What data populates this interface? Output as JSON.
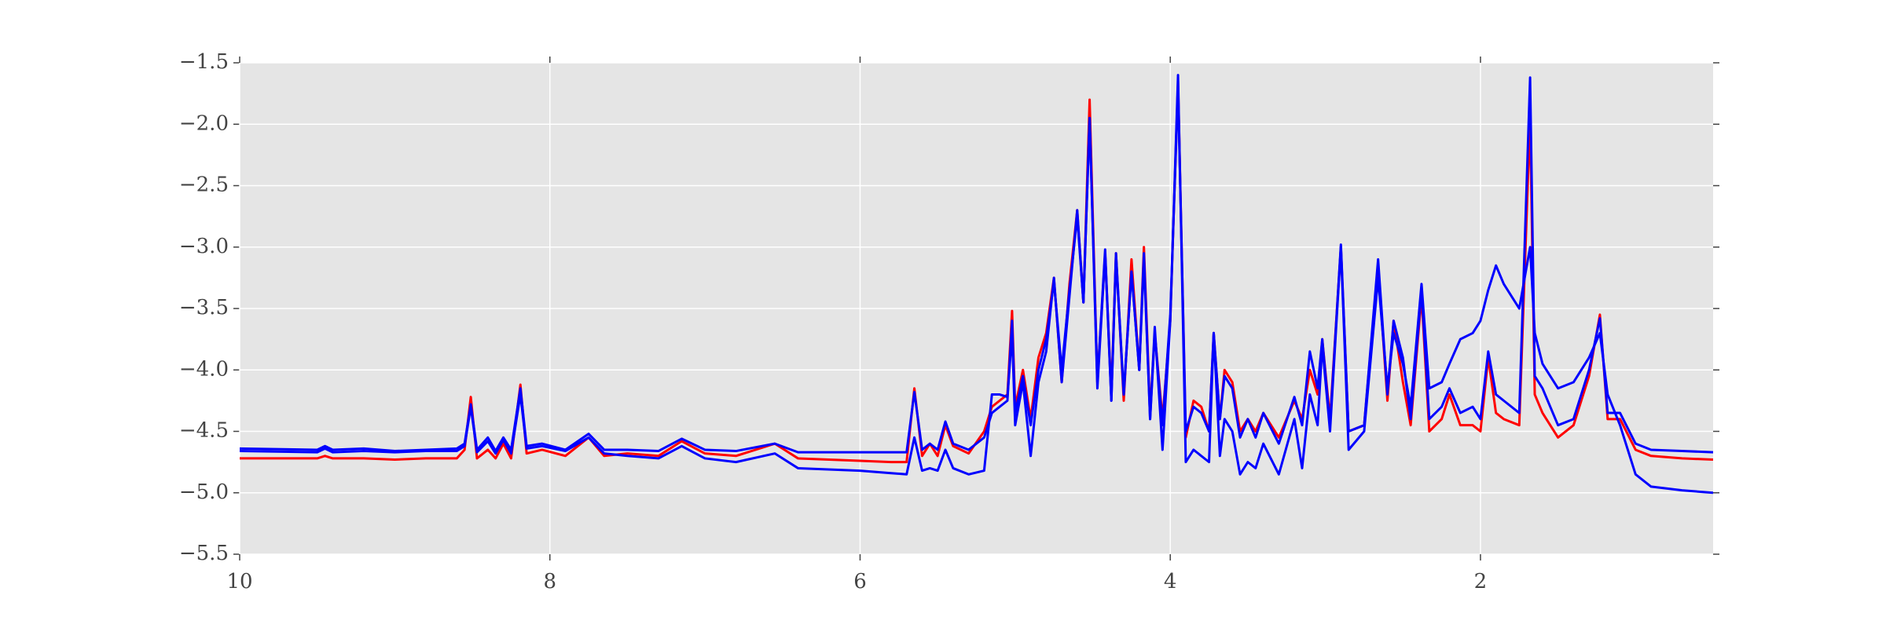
{
  "chart_data": {
    "type": "line",
    "x": [
      10,
      9.5,
      9.45,
      9.4,
      9.2,
      9.0,
      8.8,
      8.6,
      8.55,
      8.51,
      8.47,
      8.4,
      8.35,
      8.3,
      8.25,
      8.19,
      8.15,
      8.05,
      7.9,
      7.75,
      7.65,
      7.5,
      7.3,
      7.15,
      7.0,
      6.8,
      6.55,
      6.4,
      6.0,
      5.8,
      5.7,
      5.65,
      5.6,
      5.55,
      5.5,
      5.45,
      5.4,
      5.3,
      5.2,
      5.15,
      5.1,
      5.05,
      5.02,
      5.0,
      4.95,
      4.9,
      4.85,
      4.8,
      4.75,
      4.7,
      4.65,
      4.6,
      4.56,
      4.52,
      4.47,
      4.42,
      4.38,
      4.35,
      4.3,
      4.25,
      4.2,
      4.17,
      4.13,
      4.1,
      4.05,
      4.0,
      3.95,
      3.9,
      3.85,
      3.8,
      3.75,
      3.72,
      3.68,
      3.65,
      3.6,
      3.55,
      3.5,
      3.45,
      3.4,
      3.3,
      3.2,
      3.15,
      3.1,
      3.05,
      3.02,
      2.97,
      2.9,
      2.85,
      2.75,
      2.66,
      2.6,
      2.56,
      2.5,
      2.45,
      2.38,
      2.33,
      2.25,
      2.2,
      2.13,
      2.05,
      2.0,
      1.95,
      1.9,
      1.85,
      1.75,
      1.68,
      1.65,
      1.6,
      1.5,
      1.4,
      1.3,
      1.23,
      1.18,
      1.1,
      1.0,
      0.9,
      0.7,
      0.5
    ],
    "series": [
      {
        "color": "#ff0000",
        "values": [
          -4.72,
          -4.72,
          -4.7,
          -4.72,
          -4.72,
          -4.73,
          -4.72,
          -4.72,
          -4.65,
          -4.22,
          -4.72,
          -4.65,
          -4.72,
          -4.6,
          -4.72,
          -4.12,
          -4.68,
          -4.65,
          -4.7,
          -4.55,
          -4.7,
          -4.68,
          -4.7,
          -4.58,
          -4.68,
          -4.7,
          -4.6,
          -4.72,
          -4.74,
          -4.75,
          -4.75,
          -4.15,
          -4.7,
          -4.6,
          -4.7,
          -4.45,
          -4.62,
          -4.68,
          -4.5,
          -4.3,
          -4.25,
          -4.2,
          -3.52,
          -4.3,
          -4.0,
          -4.4,
          -3.9,
          -3.7,
          -3.25,
          -4.1,
          -3.3,
          -2.7,
          -3.45,
          -1.8,
          -4.1,
          -3.05,
          -4.2,
          -3.05,
          -4.25,
          -3.1,
          -4.0,
          -3.0,
          -4.35,
          -3.7,
          -4.4,
          -3.6,
          -1.65,
          -4.55,
          -4.25,
          -4.3,
          -4.5,
          -3.7,
          -4.4,
          -4.0,
          -4.1,
          -4.5,
          -4.4,
          -4.5,
          -4.35,
          -4.55,
          -4.25,
          -4.4,
          -4.0,
          -4.2,
          -3.75,
          -4.4,
          -3.0,
          -4.5,
          -4.45,
          -3.15,
          -4.25,
          -3.6,
          -4.1,
          -4.45,
          -3.4,
          -4.5,
          -4.4,
          -4.2,
          -4.45,
          -4.45,
          -4.5,
          -3.9,
          -4.35,
          -4.4,
          -4.45,
          -1.95,
          -4.2,
          -4.35,
          -4.55,
          -4.45,
          -4.05,
          -3.55,
          -4.4,
          -4.4,
          -4.65,
          -4.7,
          -4.72,
          -4.73
        ]
      },
      {
        "color": "#0000ff",
        "values": [
          -4.64,
          -4.65,
          -4.62,
          -4.65,
          -4.64,
          -4.66,
          -4.65,
          -4.64,
          -4.6,
          -4.28,
          -4.65,
          -4.55,
          -4.66,
          -4.55,
          -4.65,
          -4.15,
          -4.62,
          -4.6,
          -4.65,
          -4.52,
          -4.65,
          -4.65,
          -4.66,
          -4.56,
          -4.65,
          -4.66,
          -4.6,
          -4.67,
          -4.67,
          -4.67,
          -4.67,
          -4.18,
          -4.65,
          -4.6,
          -4.65,
          -4.42,
          -4.6,
          -4.65,
          -4.55,
          -4.35,
          -4.3,
          -4.25,
          -3.6,
          -4.35,
          -4.05,
          -4.45,
          -4.0,
          -3.75,
          -3.28,
          -4.0,
          -3.35,
          -2.75,
          -3.45,
          -1.95,
          -4.15,
          -3.05,
          -4.25,
          -3.08,
          -4.2,
          -3.2,
          -4.0,
          -3.05,
          -4.4,
          -3.7,
          -4.45,
          -3.55,
          -1.7,
          -4.5,
          -4.3,
          -4.35,
          -4.5,
          -3.7,
          -4.4,
          -4.05,
          -4.15,
          -4.55,
          -4.4,
          -4.55,
          -4.35,
          -4.6,
          -4.22,
          -4.45,
          -3.85,
          -4.15,
          -3.75,
          -4.45,
          -2.98,
          -4.5,
          -4.45,
          -3.1,
          -4.2,
          -3.6,
          -3.9,
          -4.4,
          -3.35,
          -4.4,
          -4.3,
          -4.15,
          -4.35,
          -4.3,
          -4.4,
          -3.85,
          -4.2,
          -4.25,
          -4.35,
          -1.62,
          -4.05,
          -4.15,
          -4.45,
          -4.4,
          -4.0,
          -3.58,
          -4.35,
          -4.35,
          -4.6,
          -4.65,
          -4.66,
          -4.67
        ]
      },
      {
        "color": "#0000ff",
        "values": [
          -4.66,
          -4.67,
          -4.64,
          -4.67,
          -4.66,
          -4.67,
          -4.66,
          -4.66,
          -4.62,
          -4.3,
          -4.67,
          -4.58,
          -4.68,
          -4.57,
          -4.68,
          -4.2,
          -4.64,
          -4.62,
          -4.66,
          -4.55,
          -4.68,
          -4.7,
          -4.72,
          -4.62,
          -4.72,
          -4.75,
          -4.68,
          -4.8,
          -4.82,
          -4.84,
          -4.85,
          -4.55,
          -4.82,
          -4.8,
          -4.82,
          -4.65,
          -4.8,
          -4.85,
          -4.82,
          -4.2,
          -4.2,
          -4.22,
          -3.7,
          -4.45,
          -4.1,
          -4.7,
          -4.1,
          -3.85,
          -3.25,
          -4.1,
          -3.4,
          -2.7,
          -3.45,
          -1.95,
          -4.1,
          -3.02,
          -4.25,
          -3.05,
          -4.2,
          -3.2,
          -4.0,
          -3.1,
          -4.4,
          -3.65,
          -4.65,
          -3.6,
          -1.6,
          -4.75,
          -4.65,
          -4.7,
          -4.75,
          -3.7,
          -4.7,
          -4.4,
          -4.5,
          -4.85,
          -4.75,
          -4.8,
          -4.6,
          -4.85,
          -4.4,
          -4.8,
          -4.2,
          -4.45,
          -3.8,
          -4.5,
          -3.0,
          -4.65,
          -4.5,
          -3.25,
          -4.15,
          -3.7,
          -3.95,
          -4.3,
          -3.3,
          -4.15,
          -4.1,
          -3.95,
          -3.75,
          -3.7,
          -3.6,
          -3.35,
          -3.15,
          -3.3,
          -3.5,
          -3.0,
          -3.7,
          -3.95,
          -4.15,
          -4.1,
          -3.9,
          -3.7,
          -4.2,
          -4.45,
          -4.85,
          -4.95,
          -4.98,
          -5.0
        ]
      }
    ],
    "xlim": [
      10,
      0.5
    ],
    "xticks": [
      10,
      8,
      6,
      4,
      2
    ],
    "ylim": [
      -5.5,
      -1.5
    ],
    "yticks": [
      {
        "value": -1.5,
        "label": "−1.5"
      },
      {
        "value": -2.0,
        "label": "−2.0"
      },
      {
        "value": -2.5,
        "label": "−2.5"
      },
      {
        "value": -3.0,
        "label": "−3.0"
      },
      {
        "value": -3.5,
        "label": "−3.5"
      },
      {
        "value": -4.0,
        "label": "−4.0"
      },
      {
        "value": -4.5,
        "label": "−4.5"
      },
      {
        "value": -5.0,
        "label": "−5.0"
      },
      {
        "value": -5.5,
        "label": "−5.5"
      }
    ],
    "grid": true,
    "background": "#e5e5e5"
  }
}
